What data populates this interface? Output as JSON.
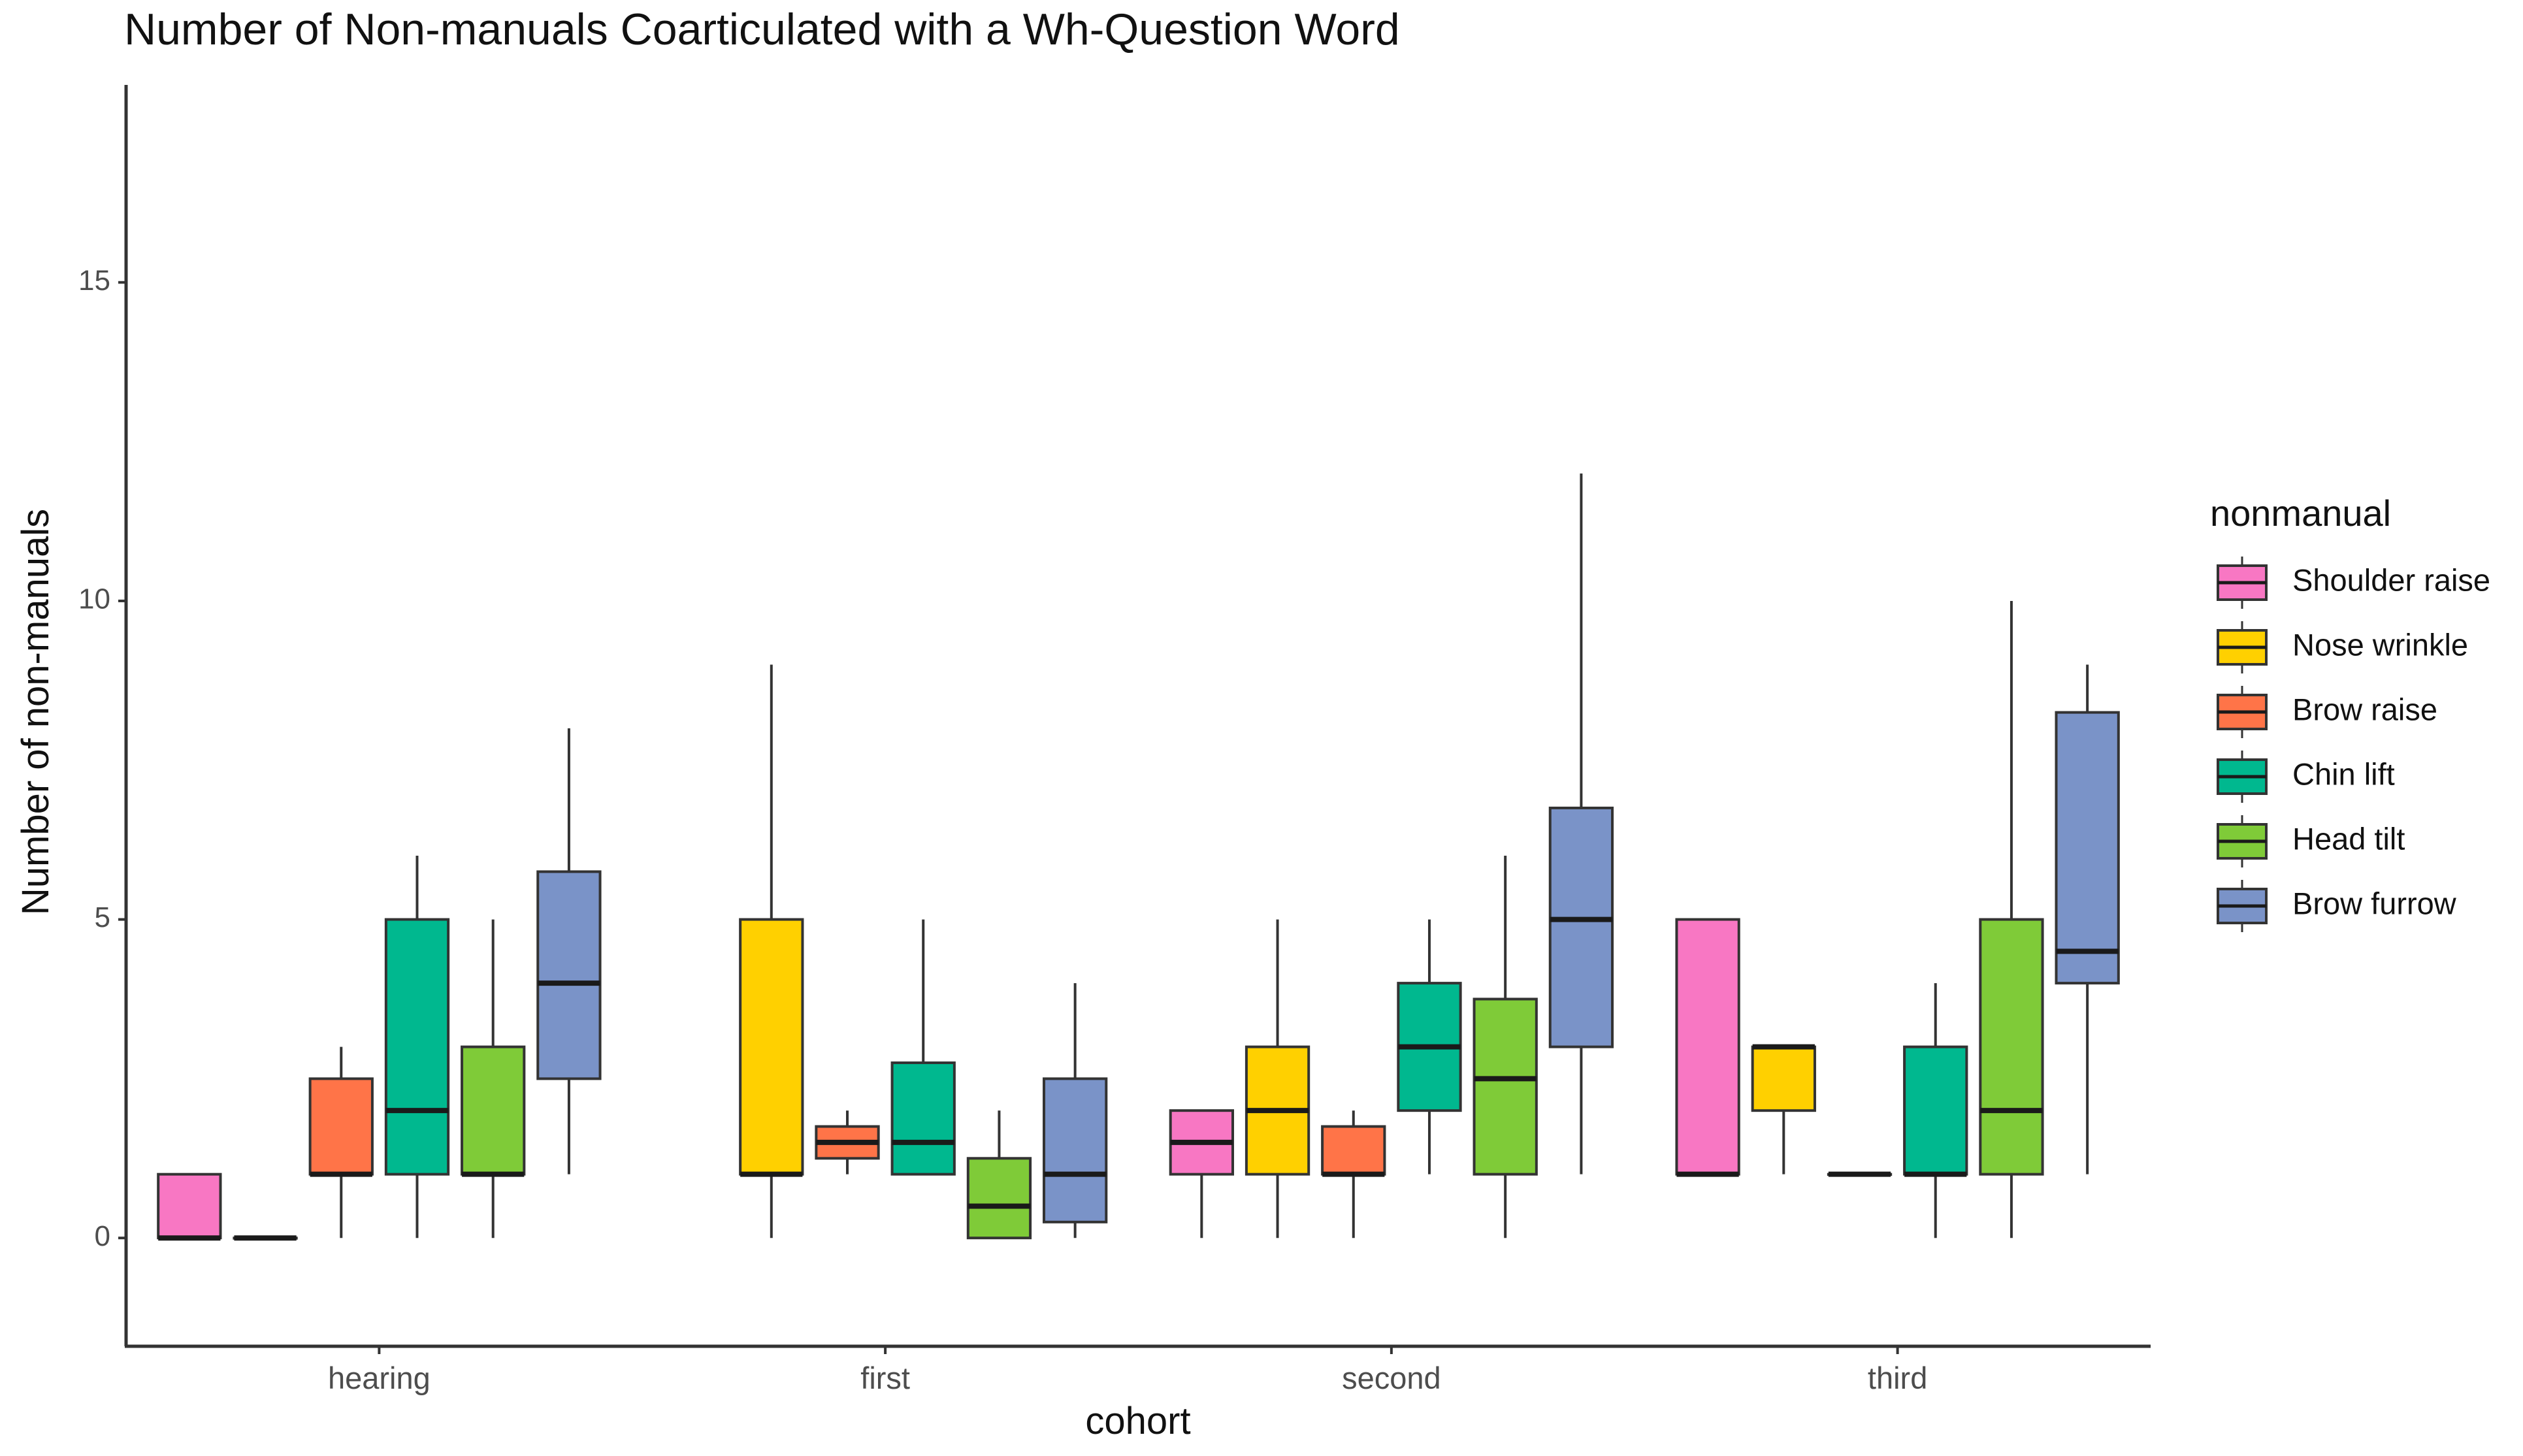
{
  "chart_data": {
    "type": "boxplot",
    "title": "Number of Non-manuals Coarticulated with a Wh-Question Word",
    "xlabel": "cohort",
    "ylabel": "Number of non-manuals",
    "ylim": [
      -1.7,
      18.1
    ],
    "yticks": [
      0,
      5,
      10,
      15
    ],
    "grid": false,
    "legend_position": "right",
    "legend_title": "nonmanual",
    "categories": [
      "hearing",
      "first",
      "second",
      "third"
    ],
    "series": [
      {
        "name": "Shoulder raise",
        "color": "#F877C3",
        "boxes": [
          {
            "min": 0,
            "q1": 0,
            "median": 0,
            "q3": 1,
            "max": 1
          },
          null,
          {
            "min": 0,
            "q1": 1,
            "median": 1.5,
            "q3": 2,
            "max": 2
          },
          {
            "min": 1,
            "q1": 1,
            "median": 1,
            "q3": 5,
            "max": 5
          }
        ]
      },
      {
        "name": "Nose wrinkle",
        "color": "#FFD000",
        "boxes": [
          {
            "min": 0,
            "q1": 0,
            "median": 0,
            "q3": 0,
            "max": 0
          },
          {
            "min": 0,
            "q1": 1,
            "median": 1,
            "q3": 5,
            "max": 9
          },
          {
            "min": 0,
            "q1": 1,
            "median": 2,
            "q3": 3,
            "max": 5
          },
          {
            "min": 1,
            "q1": 2,
            "median": 3,
            "q3": 3,
            "max": 3
          }
        ]
      },
      {
        "name": "Brow raise",
        "color": "#FF7448",
        "boxes": [
          {
            "min": 0,
            "q1": 1,
            "median": 1,
            "q3": 2.5,
            "max": 3
          },
          {
            "min": 1,
            "q1": 1.25,
            "median": 1.5,
            "q3": 1.75,
            "max": 2
          },
          {
            "min": 0,
            "q1": 1,
            "median": 1,
            "q3": 1.75,
            "max": 2
          },
          {
            "min": 1,
            "q1": 1,
            "median": 1,
            "q3": 1,
            "max": 1
          }
        ]
      },
      {
        "name": "Chin lift",
        "color": "#00B88F",
        "boxes": [
          {
            "min": 0,
            "q1": 1,
            "median": 2,
            "q3": 5,
            "max": 6
          },
          {
            "min": 1,
            "q1": 1,
            "median": 1.5,
            "q3": 2.75,
            "max": 5
          },
          {
            "min": 1,
            "q1": 2,
            "median": 3,
            "q3": 4,
            "max": 5
          },
          {
            "min": 0,
            "q1": 1,
            "median": 1,
            "q3": 3,
            "max": 4
          }
        ]
      },
      {
        "name": "Head tilt",
        "color": "#7FCB38",
        "boxes": [
          {
            "min": 0,
            "q1": 1,
            "median": 1,
            "q3": 3,
            "max": 5
          },
          {
            "min": 0,
            "q1": 0,
            "median": 0.5,
            "q3": 1.25,
            "max": 2
          },
          {
            "min": 0,
            "q1": 1,
            "median": 2.5,
            "q3": 3.75,
            "max": 6
          },
          {
            "min": 0,
            "q1": 1,
            "median": 2,
            "q3": 5,
            "max": 10
          }
        ]
      },
      {
        "name": "Brow furrow",
        "color": "#7A93C8",
        "boxes": [
          {
            "min": 1,
            "q1": 2.5,
            "median": 4,
            "q3": 5.75,
            "max": 8
          },
          {
            "min": 0,
            "q1": 0.25,
            "median": 1,
            "q3": 2.5,
            "max": 4
          },
          {
            "min": 1,
            "q1": 3,
            "median": 5,
            "q3": 6.75,
            "max": 12
          },
          {
            "min": 1,
            "q1": 4,
            "median": 4.5,
            "q3": 8.25,
            "max": 9
          }
        ]
      }
    ]
  }
}
